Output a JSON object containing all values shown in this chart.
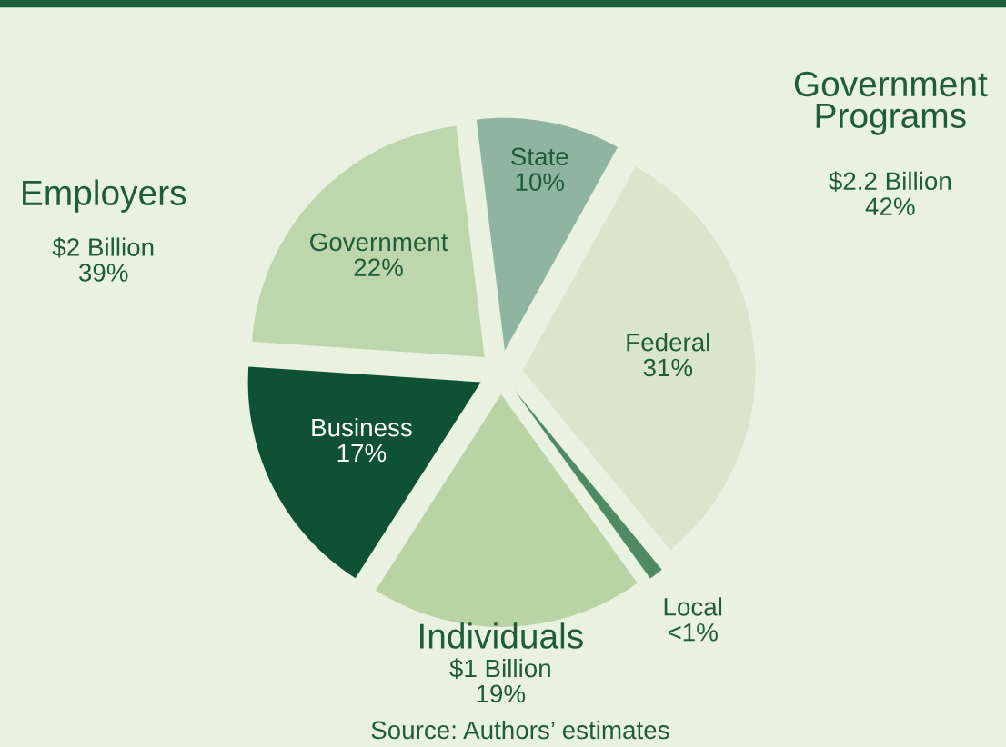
{
  "chart_data": {
    "type": "pie",
    "categories": [
      "State",
      "Federal",
      "Local",
      "Individuals",
      "Business",
      "Government"
    ],
    "values": [
      10,
      31,
      1,
      19,
      17,
      22
    ],
    "value_labels": [
      "10%",
      "31%",
      "<1%",
      "$1 Billion\n19%",
      "17%",
      "22%"
    ],
    "colors": [
      "#8fb5a0",
      "#d9e6cc",
      "#4f8a65",
      "#b9d3a4",
      "#0f5233",
      "#bed6ac"
    ],
    "annotations": [
      "Government\nPrograms",
      "$2.2 Billion\n42%",
      "Employers",
      "$2 Billion\n39%",
      "Source: Authors’ estimates"
    ]
  }
}
